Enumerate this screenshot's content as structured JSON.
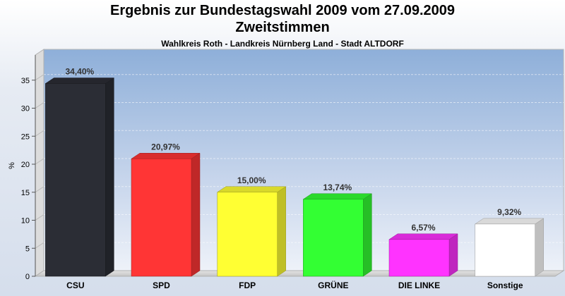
{
  "title_line1": "Ergebnis zur Bundestagswahl 2009 vom 27.09.2009",
  "title_line2": "Zweitstimmen",
  "subtitle": "Wahlkreis Roth - Landkreis Nürnberg Land - Stadt ALTDORF",
  "chart_data": {
    "type": "bar",
    "title": "Ergebnis zur Bundestagswahl 2009 vom 27.09.2009 Zweitstimmen",
    "subtitle": "Wahlkreis Roth - Landkreis Nürnberg Land - Stadt ALTDORF",
    "categories": [
      "CSU",
      "SPD",
      "FDP",
      "GRÜNE",
      "DIE LINKE",
      "Sonstige"
    ],
    "values": [
      34.4,
      20.97,
      15.0,
      13.74,
      6.57,
      9.32
    ],
    "value_labels": [
      "34,40%",
      "20,97%",
      "15,00%",
      "13,74%",
      "6,57%",
      "9,32%"
    ],
    "colors": [
      "#2b2d35",
      "#ff3535",
      "#ffff33",
      "#33ff33",
      "#ff33ff",
      "#ffffff"
    ],
    "ylabel": "%",
    "xlabel": "",
    "ylim": [
      0,
      40
    ],
    "yticks": [
      0,
      5,
      10,
      15,
      20,
      25,
      30,
      35
    ],
    "grid": true,
    "legend": "none"
  }
}
